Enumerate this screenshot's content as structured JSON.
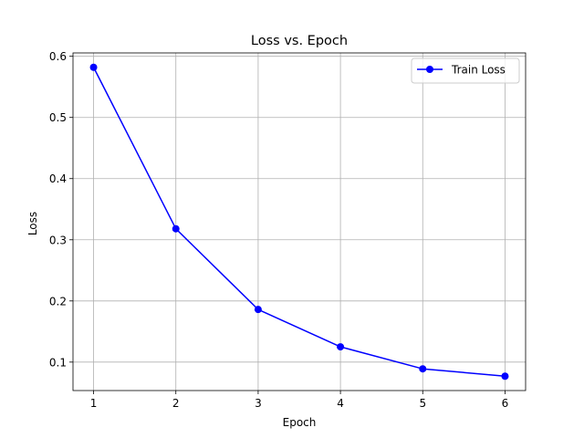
{
  "chart_data": {
    "type": "line",
    "title": "Loss vs. Epoch",
    "xlabel": "Epoch",
    "ylabel": "Loss",
    "xlim": [
      0.75,
      6.25
    ],
    "ylim": [
      0.0535,
      0.6055
    ],
    "x_ticks": [
      1,
      2,
      3,
      4,
      5,
      6
    ],
    "x_tick_labels": [
      "1",
      "2",
      "3",
      "4",
      "5",
      "6"
    ],
    "y_ticks": [
      0.1,
      0.2,
      0.3,
      0.4,
      0.5,
      0.6
    ],
    "y_tick_labels": [
      "0.1",
      "0.2",
      "0.3",
      "0.4",
      "0.5",
      "0.6"
    ],
    "grid": true,
    "legend_position": "top-right",
    "series": [
      {
        "name": "Train Loss",
        "color": "#0000ff",
        "marker": "circle",
        "x": [
          1,
          2,
          3,
          4,
          5,
          6
        ],
        "y": [
          0.582,
          0.318,
          0.186,
          0.125,
          0.089,
          0.077
        ]
      }
    ]
  }
}
